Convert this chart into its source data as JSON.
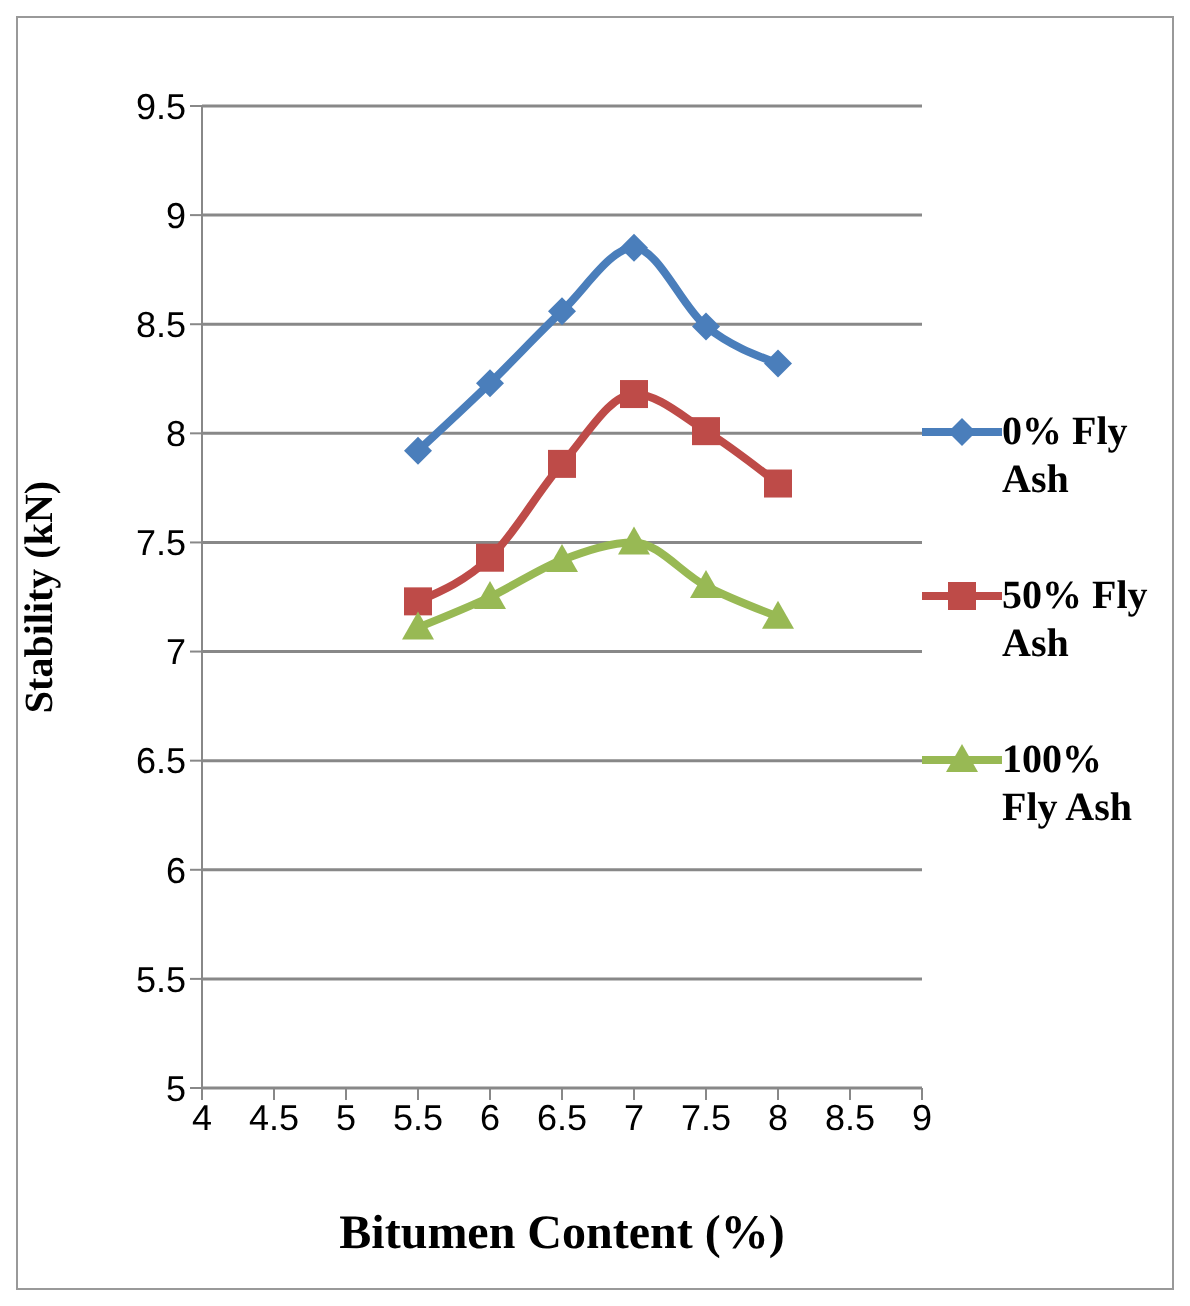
{
  "chart_data": {
    "type": "line",
    "xlabel": "Bitumen Content (%)",
    "ylabel": "Stability (kN)",
    "x": [
      5.5,
      6,
      6.5,
      7,
      7.5,
      8
    ],
    "series": [
      {
        "name": "0% Fly Ash",
        "color": "#4a7ebb",
        "marker": "diamond",
        "values": [
          7.92,
          8.23,
          8.56,
          8.85,
          8.49,
          8.32
        ]
      },
      {
        "name": "50% Fly Ash",
        "color": "#be4b48",
        "marker": "square",
        "values": [
          7.23,
          7.43,
          7.86,
          8.18,
          8.01,
          7.77
        ]
      },
      {
        "name": "100% Fly Ash",
        "color": "#98b954",
        "marker": "triangle",
        "values": [
          7.11,
          7.25,
          7.42,
          7.5,
          7.3,
          7.16
        ]
      }
    ],
    "xlim": [
      4,
      9
    ],
    "xticks": [
      4,
      4.5,
      5,
      5.5,
      6,
      6.5,
      7,
      7.5,
      8,
      8.5,
      9
    ],
    "ylim": [
      5,
      9.5
    ],
    "yticks": [
      5,
      5.5,
      6,
      6.5,
      7,
      7.5,
      8,
      8.5,
      9,
      9.5
    ],
    "grid": "y",
    "legend": "right",
    "line_style": "solid"
  }
}
